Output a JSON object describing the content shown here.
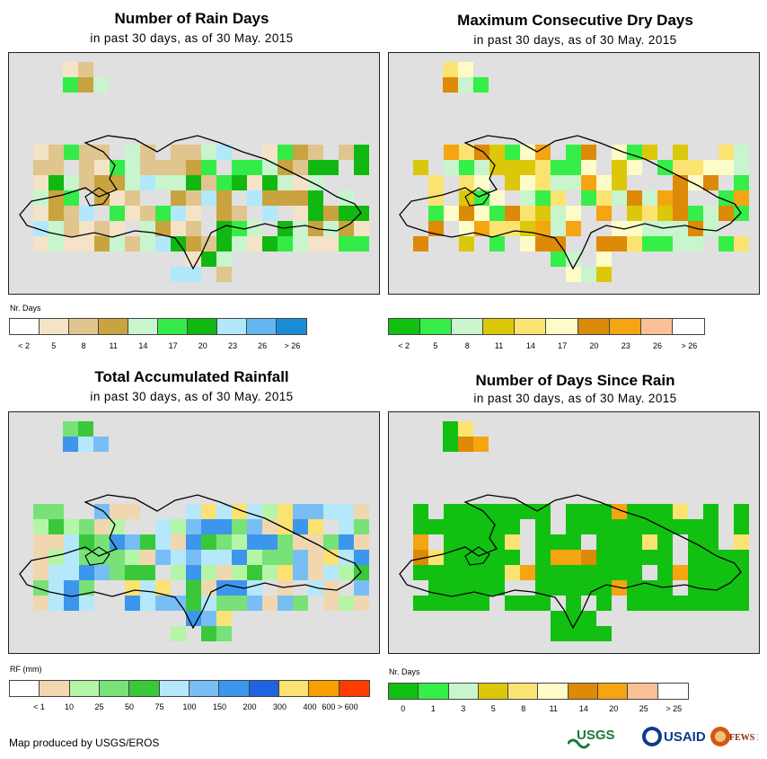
{
  "footer": {
    "credit": "Map produced by USGS/EROS"
  },
  "logos": {
    "usgs": "USGS",
    "usaid": "USAID",
    "fewsnet": "FEWS NET"
  },
  "panels": [
    {
      "title": "Number of Rain Days",
      "subtitle": "in past 30 days, as of 30 May. 2015",
      "legend_title": "Nr. Days",
      "legend_colors": [
        "#ffffff",
        "#f5e3c8",
        "#e1c58f",
        "#c9a33f",
        "#c8f5cd",
        "#34ec47",
        "#12b812",
        "#b2e8fb",
        "#63b8f2",
        "#1b8dd7"
      ],
      "legend_labels": [
        "< 2",
        "5",
        "8",
        "11",
        "14",
        "17",
        "20",
        "23",
        "26",
        "> 26"
      ]
    },
    {
      "title": "Maximum Consecutive Dry Days",
      "subtitle": "in past 30 days, as of 30 May. 2015",
      "legend_title": "",
      "legend_colors": [
        "#12c012",
        "#36ee48",
        "#c8f5cd",
        "#dcc80a",
        "#fbe371",
        "#fdfbc8",
        "#dc8a08",
        "#f5a412",
        "#fbc096",
        "#ffffff"
      ],
      "legend_labels": [
        "< 2",
        "5",
        "8",
        "11",
        "14",
        "17",
        "20",
        "23",
        "26",
        "> 26"
      ]
    },
    {
      "title": "Total Accumulated Rainfall",
      "subtitle": "in past 30 days, as of 30 May. 2015",
      "legend_title": "RF (mm)",
      "legend_colors": [
        "#ffffff",
        "#f0d7b0",
        "#b5f5a8",
        "#78e278",
        "#3ac83a",
        "#b5e8fb",
        "#78bef5",
        "#3c96ec",
        "#1e64e0",
        "#fce173",
        "#f7a000",
        "#ff3c00"
      ],
      "legend_labels": [
        "< 1",
        "10",
        "25",
        "50",
        "75",
        "100",
        "150",
        "200",
        "300",
        "400",
        "600 > 600"
      ]
    },
    {
      "title": "Number of Days Since Rain",
      "subtitle": "in past 30 days, as of 30 May. 2015",
      "legend_title": "Nr. Days",
      "legend_colors": [
        "#12c012",
        "#36ee48",
        "#c8f5cd",
        "#dcc80a",
        "#fbe371",
        "#fdfbc8",
        "#dc8a08",
        "#f5a412",
        "#fbc096",
        "#ffffff"
      ],
      "legend_labels": [
        "0",
        "1",
        "3",
        "5",
        "8",
        "11",
        "14",
        "20",
        "25",
        "> 25"
      ]
    }
  ]
}
